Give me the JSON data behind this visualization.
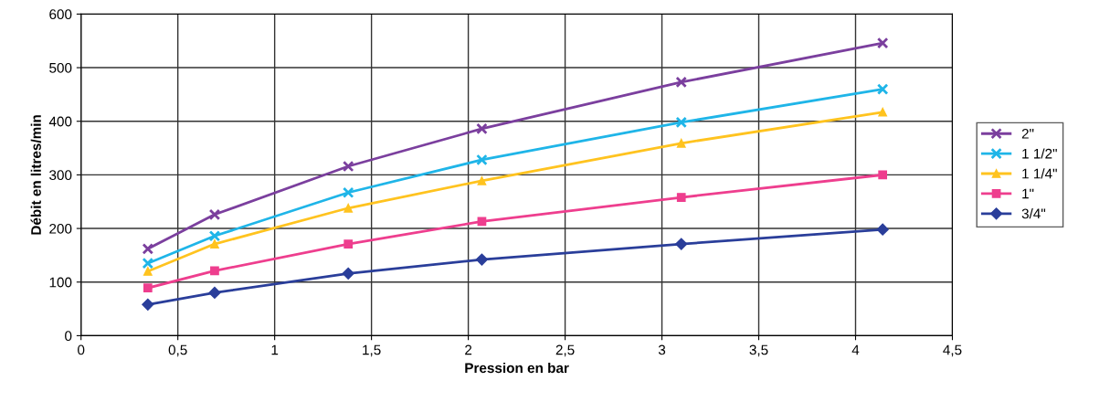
{
  "chart_data": {
    "type": "line",
    "xlabel": "Pression en bar",
    "ylabel": "Débit en litres/min",
    "x": [
      0.345,
      0.69,
      1.38,
      2.07,
      3.1,
      4.14
    ],
    "series": [
      {
        "name": "2\"",
        "color": "#7b3f9e",
        "marker": "cross",
        "values": [
          162,
          226,
          316,
          386,
          473,
          546
        ]
      },
      {
        "name": "1 1/2\"",
        "color": "#1fb5e8",
        "marker": "cross",
        "values": [
          135,
          186,
          267,
          328,
          398,
          460
        ]
      },
      {
        "name": "1 1/4\"",
        "color": "#ffc31f",
        "marker": "triangle",
        "values": [
          120,
          171,
          238,
          289,
          359,
          417
        ]
      },
      {
        "name": "1\"",
        "color": "#ee3e8e",
        "marker": "square",
        "values": [
          89,
          121,
          171,
          213,
          258,
          300
        ]
      },
      {
        "name": "3/4\"",
        "color": "#2a3e9a",
        "marker": "diamond",
        "values": [
          58,
          80,
          116,
          142,
          171,
          198
        ]
      }
    ],
    "xlim": [
      0,
      4.5
    ],
    "xticks": [
      0,
      {
        "value": 0.5,
        "label": "0,5"
      },
      1,
      {
        "value": 1.5,
        "label": "1,5"
      },
      2,
      {
        "value": 2.5,
        "label": "2,5"
      },
      3,
      {
        "value": 3.5,
        "label": "3,5"
      },
      4,
      {
        "value": 4.5,
        "label": "4,5"
      }
    ],
    "ylim": [
      0,
      600
    ],
    "yticks": [
      0,
      100,
      200,
      300,
      400,
      500,
      600
    ],
    "grid": true,
    "legend": "right",
    "line_style": "solid"
  }
}
